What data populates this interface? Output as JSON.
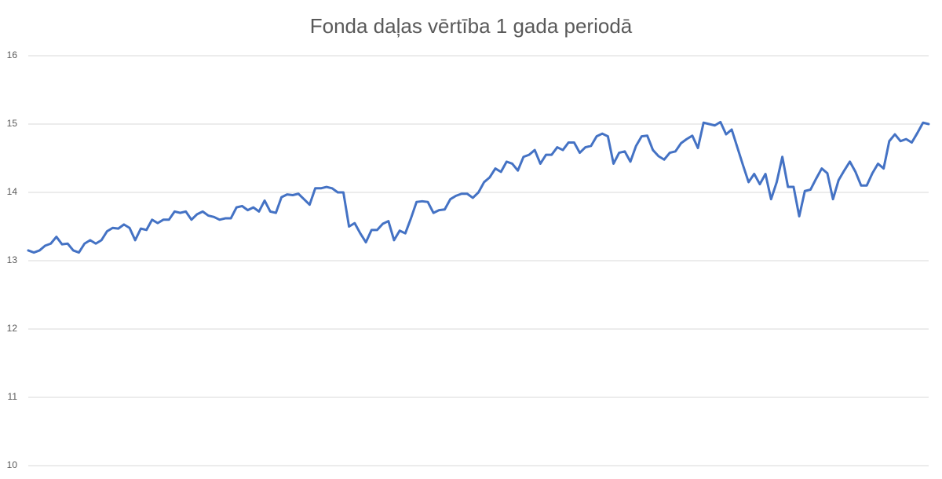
{
  "chart_data": {
    "type": "line",
    "title": "Fonda daļas vērtība 1 gada periodā",
    "color": "#4472c4",
    "ylim": [
      10,
      16
    ],
    "yticks": [
      10,
      11,
      12,
      13,
      14,
      15,
      16
    ],
    "grid": true,
    "values": [
      13.15,
      13.12,
      13.15,
      13.22,
      13.25,
      13.35,
      13.24,
      13.25,
      13.15,
      13.12,
      13.25,
      13.3,
      13.25,
      13.3,
      13.43,
      13.48,
      13.47,
      13.53,
      13.48,
      13.3,
      13.47,
      13.45,
      13.6,
      13.55,
      13.6,
      13.6,
      13.72,
      13.7,
      13.72,
      13.6,
      13.68,
      13.72,
      13.66,
      13.64,
      13.6,
      13.62,
      13.62,
      13.78,
      13.8,
      13.74,
      13.78,
      13.72,
      13.88,
      13.72,
      13.7,
      13.93,
      13.97,
      13.96,
      13.98,
      13.9,
      13.82,
      14.06,
      14.06,
      14.08,
      14.06,
      14.0,
      14.0,
      13.5,
      13.55,
      13.4,
      13.27,
      13.45,
      13.45,
      13.54,
      13.58,
      13.3,
      13.44,
      13.4,
      13.62,
      13.86,
      13.87,
      13.86,
      13.7,
      13.74,
      13.75,
      13.9,
      13.95,
      13.98,
      13.98,
      13.92,
      14.0,
      14.15,
      14.22,
      14.35,
      14.3,
      14.45,
      14.42,
      14.32,
      14.52,
      14.55,
      14.62,
      14.42,
      14.55,
      14.55,
      14.66,
      14.62,
      14.73,
      14.73,
      14.58,
      14.66,
      14.68,
      14.82,
      14.86,
      14.82,
      14.42,
      14.58,
      14.6,
      14.45,
      14.68,
      14.82,
      14.83,
      14.62,
      14.53,
      14.48,
      14.58,
      14.6,
      14.72,
      14.78,
      14.83,
      14.65,
      15.02,
      15.0,
      14.98,
      15.03,
      14.85,
      14.92,
      14.66,
      14.4,
      14.15,
      14.27,
      14.12,
      14.27,
      13.9,
      14.15,
      14.52,
      14.08,
      14.08,
      13.65,
      14.02,
      14.04,
      14.2,
      14.35,
      14.28,
      13.9,
      14.18,
      14.32,
      14.45,
      14.3,
      14.1,
      14.1,
      14.28,
      14.42,
      14.35,
      14.75,
      14.85,
      14.75,
      14.78,
      14.73,
      14.87,
      15.02,
      15.0
    ]
  }
}
